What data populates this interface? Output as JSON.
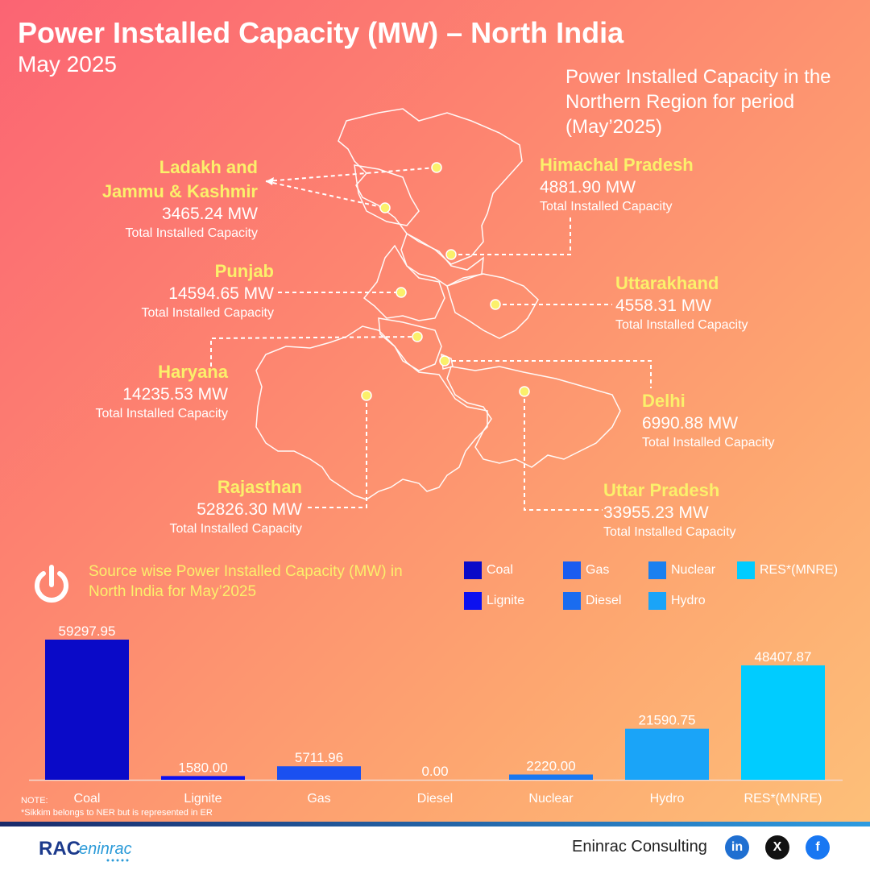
{
  "header": {
    "title": "Power Installed Capacity (MW) – North India",
    "subtitle": "May 2025",
    "intro": "Power Installed Capacity in the Northern Region for period (May’2025)"
  },
  "states": {
    "jk": {
      "name_line1": "Ladakh and",
      "name_line2": "Jammu & Kashmir",
      "value": "3465.24 MW",
      "caption": "Total Installed Capacity"
    },
    "hp": {
      "name": "Himachal Pradesh",
      "value": "4881.90 MW",
      "caption": "Total Installed Capacity"
    },
    "punjab": {
      "name": "Punjab",
      "value": "14594.65 MW",
      "caption": "Total Installed Capacity"
    },
    "uttarakhand": {
      "name": "Uttarakhand",
      "value": "4558.31 MW",
      "caption": "Total Installed Capacity"
    },
    "haryana": {
      "name": "Haryana",
      "value": "14235.53 MW",
      "caption": "Total Installed Capacity"
    },
    "delhi": {
      "name": "Delhi",
      "value": "6990.88 MW",
      "caption": "Total Installed Capacity"
    },
    "rajasthan": {
      "name": "Rajasthan",
      "value": "52826.30 MW",
      "caption": "Total Installed Capacity"
    },
    "up": {
      "name": "Uttar Pradesh",
      "value": "33955.23 MW",
      "caption": "Total Installed Capacity"
    }
  },
  "source_section": {
    "title": "Source wise Power Installed Capacity (MW) in North India for May’2025",
    "icon": "power-icon",
    "legend": [
      {
        "label": "Coal",
        "color": "#0a0ac8"
      },
      {
        "label": "Gas",
        "color": "#1a5cf0"
      },
      {
        "label": "Nuclear",
        "color": "#1a80f0"
      },
      {
        "label": "RES*(MNRE)",
        "color": "#00ccff"
      },
      {
        "label": "Lignite",
        "color": "#0c10f0"
      },
      {
        "label": "Diesel",
        "color": "#1a6cf0"
      },
      {
        "label": "Hydro",
        "color": "#1aa4f8"
      }
    ]
  },
  "chart_data": {
    "type": "bar",
    "categories": [
      "Coal",
      "Lignite",
      "Gas",
      "Diesel",
      "Nuclear",
      "Hydro",
      "RES*(MNRE)"
    ],
    "values": [
      59297.95,
      1580.0,
      5711.96,
      0.0,
      2220.0,
      21590.75,
      48407.87
    ],
    "labels": [
      "59297.95",
      "1580.00",
      "5711.96",
      "0.00",
      "2220.00",
      "21590.75",
      "48407.87"
    ],
    "colors": [
      "#0a0ac8",
      "#0c10f0",
      "#1a50f0",
      "#1a6cf0",
      "#1a78f0",
      "#1aa4f8",
      "#00ccff"
    ],
    "ylim": [
      0,
      59297.95
    ],
    "grid": false
  },
  "notes": {
    "label": "NOTE:",
    "text": "*Sikkim belongs to NER but is represented in ER"
  },
  "footer": {
    "logo_text": "RAC eninrac",
    "brand": "Eninrac Consulting",
    "social": [
      {
        "icon": "linkedin-icon",
        "glyph": "in",
        "color": "#1f6fd1"
      },
      {
        "icon": "x-icon",
        "glyph": "X",
        "color": "#111111"
      },
      {
        "icon": "facebook-icon",
        "glyph": "f",
        "color": "#1877f2"
      }
    ]
  }
}
